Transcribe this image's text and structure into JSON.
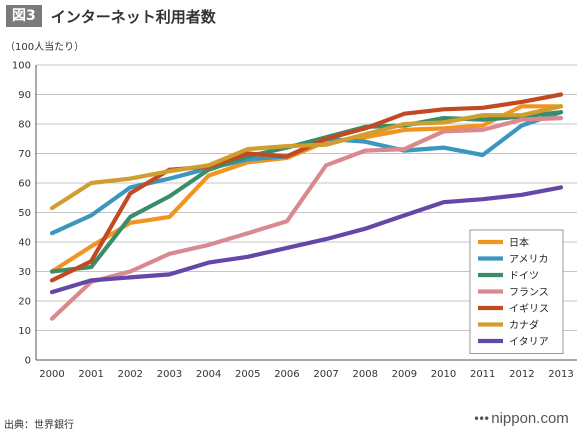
{
  "header": {
    "figure_tag": "図3",
    "title": "インターネット利用者数"
  },
  "footer": {
    "source": "出典：世界銀行",
    "brand": "nippon.com"
  },
  "chart_data": {
    "type": "line",
    "title": "インターネット利用者数",
    "ylabel": "（100人当たり）",
    "xlabel": "",
    "ylim": [
      0,
      100
    ],
    "yticks": [
      0,
      10,
      20,
      30,
      40,
      50,
      60,
      70,
      80,
      90,
      100
    ],
    "grid": true,
    "legend_position": "bottom-right",
    "x": [
      "2000",
      "2001",
      "2002",
      "2003",
      "2004",
      "2005",
      "2006",
      "2007",
      "2008",
      "2009",
      "2010",
      "2011",
      "2012",
      "2013"
    ],
    "series": [
      {
        "name": "日本",
        "color": "#f29520",
        "values": [
          30,
          38.5,
          46.5,
          48.5,
          62.5,
          67,
          68.5,
          74,
          75.5,
          78,
          78.5,
          79.5,
          86,
          86
        ]
      },
      {
        "name": "アメリカ",
        "color": "#3c96be",
        "values": [
          43,
          49,
          58.5,
          61.5,
          65,
          68,
          69,
          75,
          74,
          71,
          72,
          69.5,
          79.5,
          84
        ]
      },
      {
        "name": "ドイツ",
        "color": "#3b8c68",
        "values": [
          30,
          31.5,
          48.5,
          55.5,
          64.5,
          69,
          72,
          75.5,
          79,
          79.5,
          82,
          81.5,
          82.5,
          84
        ]
      },
      {
        "name": "フランス",
        "color": "#d9898f",
        "values": [
          14,
          26.5,
          30,
          36,
          39,
          43,
          47,
          66,
          71,
          71.5,
          77.5,
          78,
          81.5,
          82
        ]
      },
      {
        "name": "イギリス",
        "color": "#c14a22",
        "values": [
          27,
          33.5,
          56.5,
          64.5,
          65.5,
          70,
          69,
          75,
          78.5,
          83.5,
          85,
          85.5,
          87.5,
          90
        ]
      },
      {
        "name": "カナダ",
        "color": "#cf9e2e",
        "values": [
          51.5,
          60,
          61.5,
          64,
          66,
          71.5,
          72.5,
          73,
          76.5,
          80,
          80.5,
          83,
          83,
          86
        ]
      },
      {
        "name": "イタリア",
        "color": "#6448a8",
        "values": [
          23,
          27,
          28,
          29,
          33,
          35,
          38,
          41,
          44.5,
          49,
          53.5,
          54.5,
          56,
          58.5
        ]
      }
    ]
  }
}
